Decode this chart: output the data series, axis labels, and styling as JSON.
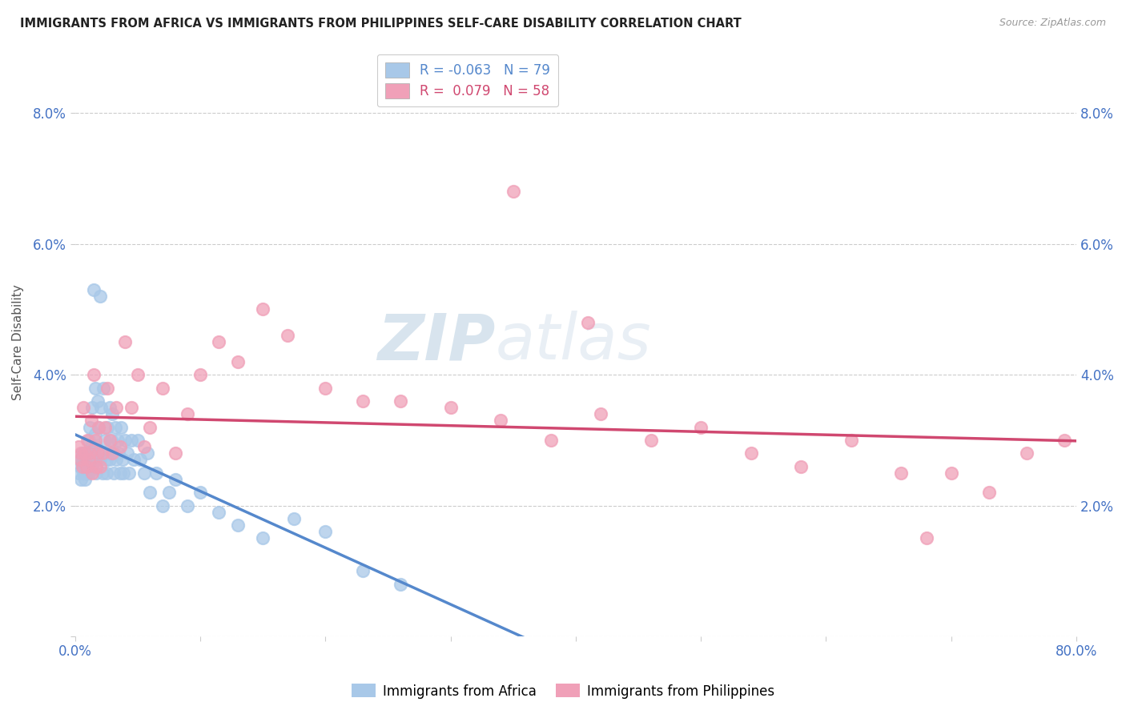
{
  "title": "IMMIGRANTS FROM AFRICA VS IMMIGRANTS FROM PHILIPPINES SELF-CARE DISABILITY CORRELATION CHART",
  "source": "Source: ZipAtlas.com",
  "ylabel": "Self-Care Disability",
  "xlim": [
    0,
    0.8
  ],
  "ylim": [
    0,
    0.09
  ],
  "yticks": [
    0.0,
    0.02,
    0.04,
    0.06,
    0.08
  ],
  "ytick_labels": [
    "",
    "2.0%",
    "4.0%",
    "6.0%",
    "8.0%"
  ],
  "xticks": [
    0.0,
    0.1,
    0.2,
    0.3,
    0.4,
    0.5,
    0.6,
    0.7,
    0.8
  ],
  "xtick_labels": [
    "0.0%",
    "",
    "",
    "",
    "",
    "",
    "",
    "",
    "80.0%"
  ],
  "africa_color": "#a8c8e8",
  "africa_color_line": "#5588cc",
  "philippines_color": "#f0a0b8",
  "philippines_color_line": "#d04870",
  "africa_R": -0.063,
  "africa_N": 79,
  "philippines_R": 0.079,
  "philippines_N": 58,
  "watermark_zip": "ZIP",
  "watermark_atlas": "atlas",
  "background_color": "#ffffff",
  "grid_color": "#cccccc",
  "tick_color": "#4472c4",
  "africa_scatter_x": [
    0.003,
    0.004,
    0.005,
    0.005,
    0.006,
    0.006,
    0.007,
    0.007,
    0.008,
    0.008,
    0.009,
    0.009,
    0.01,
    0.01,
    0.011,
    0.011,
    0.012,
    0.012,
    0.013,
    0.013,
    0.014,
    0.014,
    0.015,
    0.015,
    0.016,
    0.016,
    0.017,
    0.017,
    0.018,
    0.018,
    0.019,
    0.02,
    0.02,
    0.021,
    0.021,
    0.022,
    0.023,
    0.024,
    0.025,
    0.025,
    0.026,
    0.027,
    0.028,
    0.028,
    0.029,
    0.03,
    0.031,
    0.031,
    0.032,
    0.033,
    0.034,
    0.035,
    0.036,
    0.037,
    0.038,
    0.039,
    0.04,
    0.042,
    0.043,
    0.045,
    0.047,
    0.05,
    0.052,
    0.055,
    0.058,
    0.06,
    0.065,
    0.07,
    0.075,
    0.08,
    0.09,
    0.1,
    0.115,
    0.13,
    0.15,
    0.175,
    0.2,
    0.23,
    0.26
  ],
  "africa_scatter_y": [
    0.025,
    0.026,
    0.027,
    0.024,
    0.026,
    0.028,
    0.025,
    0.027,
    0.024,
    0.026,
    0.025,
    0.027,
    0.026,
    0.028,
    0.025,
    0.03,
    0.027,
    0.032,
    0.026,
    0.029,
    0.035,
    0.028,
    0.053,
    0.027,
    0.031,
    0.038,
    0.029,
    0.025,
    0.036,
    0.027,
    0.032,
    0.052,
    0.027,
    0.035,
    0.028,
    0.025,
    0.038,
    0.03,
    0.027,
    0.025,
    0.032,
    0.028,
    0.035,
    0.027,
    0.03,
    0.034,
    0.028,
    0.025,
    0.032,
    0.027,
    0.03,
    0.028,
    0.025,
    0.032,
    0.027,
    0.025,
    0.03,
    0.028,
    0.025,
    0.03,
    0.027,
    0.03,
    0.027,
    0.025,
    0.028,
    0.022,
    0.025,
    0.02,
    0.022,
    0.024,
    0.02,
    0.022,
    0.019,
    0.017,
    0.015,
    0.018,
    0.016,
    0.01,
    0.008
  ],
  "philippines_scatter_x": [
    0.003,
    0.004,
    0.005,
    0.006,
    0.007,
    0.008,
    0.009,
    0.01,
    0.011,
    0.012,
    0.013,
    0.014,
    0.015,
    0.016,
    0.017,
    0.018,
    0.019,
    0.02,
    0.022,
    0.024,
    0.026,
    0.028,
    0.03,
    0.033,
    0.036,
    0.04,
    0.045,
    0.05,
    0.055,
    0.06,
    0.07,
    0.08,
    0.09,
    0.1,
    0.115,
    0.13,
    0.15,
    0.17,
    0.2,
    0.23,
    0.26,
    0.3,
    0.34,
    0.38,
    0.42,
    0.46,
    0.5,
    0.54,
    0.58,
    0.62,
    0.66,
    0.7,
    0.73,
    0.76,
    0.79,
    0.35,
    0.41,
    0.68
  ],
  "philippines_scatter_y": [
    0.029,
    0.027,
    0.028,
    0.026,
    0.035,
    0.028,
    0.026,
    0.03,
    0.027,
    0.028,
    0.033,
    0.025,
    0.04,
    0.03,
    0.026,
    0.028,
    0.032,
    0.026,
    0.028,
    0.032,
    0.038,
    0.03,
    0.028,
    0.035,
    0.029,
    0.045,
    0.035,
    0.04,
    0.029,
    0.032,
    0.038,
    0.028,
    0.034,
    0.04,
    0.045,
    0.042,
    0.05,
    0.046,
    0.038,
    0.036,
    0.036,
    0.035,
    0.033,
    0.03,
    0.034,
    0.03,
    0.032,
    0.028,
    0.026,
    0.03,
    0.025,
    0.025,
    0.022,
    0.028,
    0.03,
    0.068,
    0.048,
    0.015
  ]
}
